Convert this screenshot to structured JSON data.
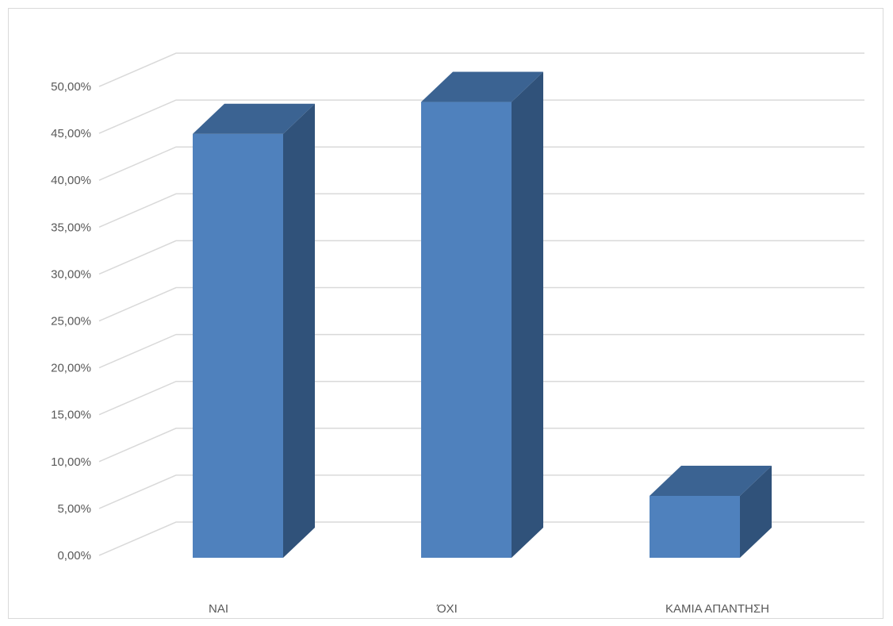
{
  "chart_data": {
    "type": "bar",
    "style": "3d-column",
    "categories": [
      "ΝΑΙ",
      "ΌΧΙ",
      "ΚΑΜΙΑ ΑΠΑΝΤΗΣΗ"
    ],
    "series": [
      {
        "values": [
          45.2,
          48.6,
          6.6
        ]
      }
    ],
    "ylim": [
      0,
      50
    ],
    "yticks": [
      "0,00%",
      "5,00%",
      "10,00%",
      "15,00%",
      "20,00%",
      "25,00%",
      "30,00%",
      "35,00%",
      "40,00%",
      "45,00%",
      "50,00%"
    ],
    "ytick_values": [
      0,
      5,
      10,
      15,
      20,
      25,
      30,
      35,
      40,
      45,
      50
    ],
    "grid": true,
    "legend": "none",
    "colors": {
      "front": "#4f81bd",
      "top": "#3b6392",
      "side": "#30527a",
      "grid": "#d9d9d9",
      "text": "#595959"
    }
  }
}
